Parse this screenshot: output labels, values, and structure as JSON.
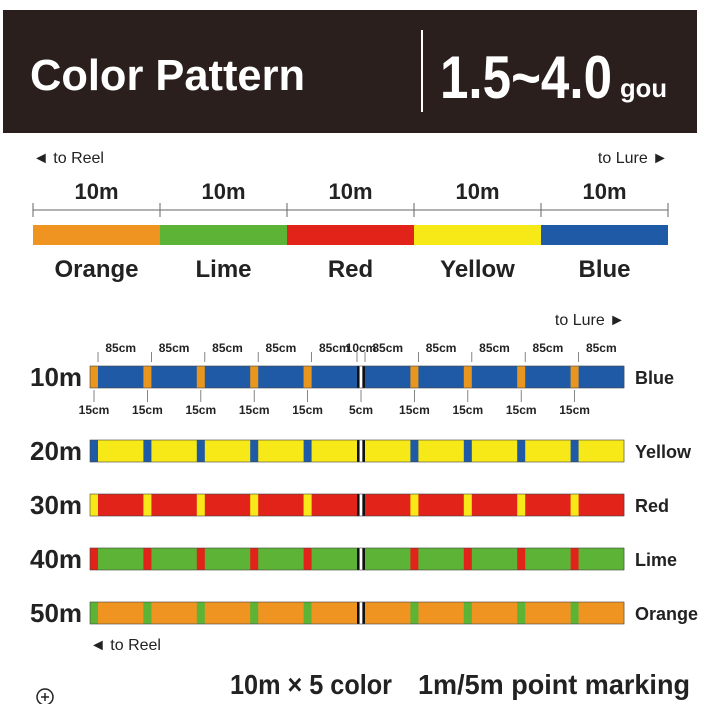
{
  "header": {
    "title": "Color Pattern",
    "size": "1.5~4.0",
    "unit": "gou"
  },
  "overview": {
    "to_reel": "◄ to Reel",
    "to_lure": "to Lure ►",
    "segments": [
      {
        "length": "10m",
        "name": "Orange",
        "color": "#ef9420"
      },
      {
        "length": "10m",
        "name": "Lime",
        "color": "#5cb335"
      },
      {
        "length": "10m",
        "name": "Red",
        "color": "#e2231a"
      },
      {
        "length": "10m",
        "name": "Yellow",
        "color": "#f7e818"
      },
      {
        "length": "10m",
        "name": "Blue",
        "color": "#1f5aa6"
      }
    ]
  },
  "detail": {
    "to_lure": "to Lure ►",
    "to_reel": "◄ to Reel",
    "top_labels": [
      "85cm",
      "85cm",
      "85cm",
      "85cm",
      "85cm",
      "10cm",
      "85cm",
      "85cm",
      "85cm",
      "85cm",
      "85cm"
    ],
    "bottom_labels": [
      "15cm",
      "15cm",
      "15cm",
      "15cm",
      "15cm",
      "5cm",
      "15cm",
      "15cm",
      "15cm",
      "15cm"
    ],
    "rows": [
      {
        "label": "10m",
        "name": "Blue",
        "color": "#1f5aa6",
        "mark_color": "#e8961e"
      },
      {
        "label": "20m",
        "name": "Yellow",
        "color": "#f7e818",
        "mark_color": "#1f5aa6"
      },
      {
        "label": "30m",
        "name": "Red",
        "color": "#e2231a",
        "mark_color": "#f7e818"
      },
      {
        "label": "40m",
        "name": "Lime",
        "color": "#5cb335",
        "mark_color": "#e2231a"
      },
      {
        "label": "50m",
        "name": "Orange",
        "color": "#ef9420",
        "mark_color": "#5cb335"
      }
    ]
  },
  "footer": {
    "spec": "10m × 5 color",
    "marking": "1m/5m point marking"
  }
}
